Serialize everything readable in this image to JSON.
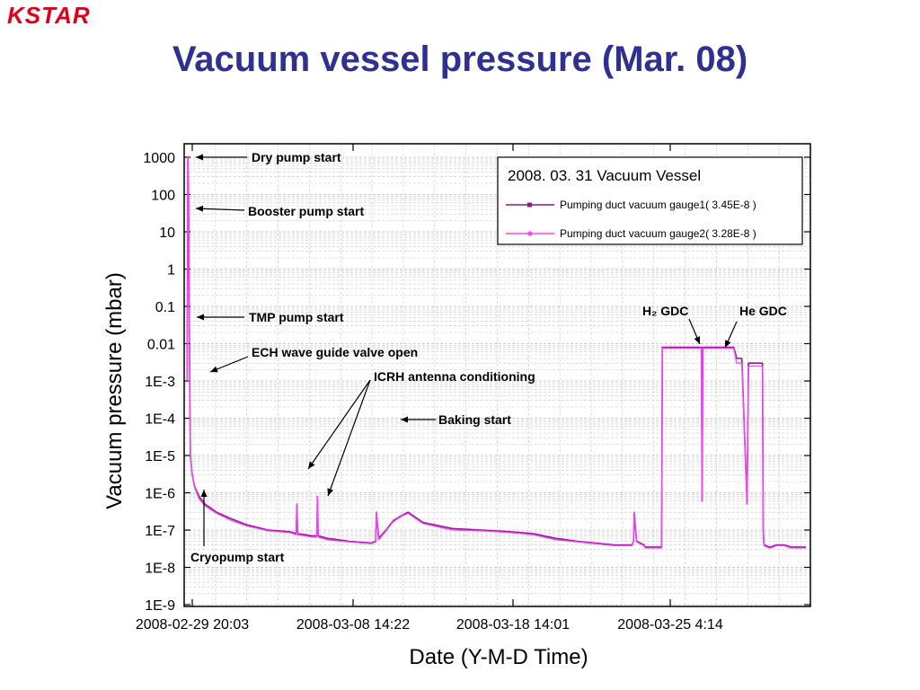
{
  "logo": {
    "text": "KSTAR"
  },
  "slide": {
    "title": "Vacuum vessel pressure (Mar. 08)"
  },
  "chart_data": {
    "type": "line",
    "title": "",
    "ylabel": "Vacuum pressure (mbar)",
    "xlabel": "Date (Y-M-D Time)",
    "yscale": "log",
    "ylim": [
      1e-09,
      1000
    ],
    "grid": true,
    "y_ticks": [
      "1000",
      "100",
      "10",
      "1",
      "0.1",
      "0.01",
      "1E-3",
      "1E-4",
      "1E-5",
      "1E-6",
      "1E-7",
      "1E-8",
      "1E-9"
    ],
    "x_ticks": [
      "2008-02-29 20:03",
      "2008-03-08 14:22",
      "2008-03-18 14:01",
      "2008-03-25 4:14"
    ],
    "legend": {
      "placement": "top-right",
      "title": "2008. 03. 31 Vacuum Vessel",
      "entries": [
        "Pumping duct vacuum gauge1( 3.45E-8 )",
        "Pumping duct vacuum gauge2( 3.28E-8 )"
      ]
    },
    "colors": {
      "gauge1": "#8b1a8b",
      "gauge2": "#ff40ff"
    },
    "series": [
      {
        "name": "Pumping duct vacuum gauge1( 3.45E-8 )",
        "x": [
          0,
          0.05,
          0.1,
          0.15,
          0.18,
          0.22,
          0.35,
          0.5,
          0.8,
          1.2,
          2.0,
          3.0,
          4.0,
          5.5,
          7.0,
          7.4,
          7.45,
          7.5,
          8.5,
          8.8,
          8.85,
          8.9,
          9.5,
          11.0,
          12.5,
          12.8,
          12.85,
          13.0,
          13.5,
          14.0,
          14.6,
          15.0,
          16.0,
          18.0,
          20.0,
          22.0,
          23.5,
          25.0,
          26.5,
          29.0,
          30.2,
          30.3,
          30.35,
          30.5,
          31.0,
          31.1,
          31.15,
          32.2,
          32.25,
          32.8,
          34.9,
          34.95,
          35.0,
          35.1,
          35.15,
          35.5,
          35.55,
          36.0,
          36.1,
          36.2,
          36.25,
          36.5,
          36.55,
          37.0,
          37.1,
          37.3,
          37.35,
          37.6,
          37.65,
          38.0,
          38.1,
          38.3,
          38.35,
          38.6,
          39.0,
          39.05,
          39.1,
          39.15,
          39.5,
          39.6,
          40.0,
          40.5,
          41.0,
          42.0
        ],
        "y": [
          0.001,
          1000,
          100,
          0.05,
          0.001,
          1e-05,
          3e-06,
          1.5e-06,
          8e-07,
          5e-07,
          3e-07,
          2e-07,
          1.4e-07,
          1e-07,
          9e-08,
          8e-08,
          5e-07,
          8e-08,
          7e-08,
          7e-08,
          8e-07,
          7e-08,
          6e-08,
          5e-08,
          4.5e-08,
          5e-08,
          3e-07,
          6e-08,
          1e-07,
          1.8e-07,
          2.5e-07,
          3e-07,
          1.6e-07,
          1.1e-07,
          1e-07,
          9e-08,
          8e-08,
          6e-08,
          5e-08,
          4e-08,
          4e-08,
          5e-08,
          3e-07,
          5e-08,
          4e-08,
          3.5e-08,
          3.5e-08,
          3.5e-08,
          0.008,
          0.008,
          0.008,
          6e-07,
          0.008,
          0.008,
          0.008,
          0.008,
          0.008,
          0.008,
          0.008,
          0.008,
          0.008,
          0.008,
          0.008,
          0.008,
          0.008,
          0.004,
          0.004,
          0.004,
          0.004,
          5e-07,
          0.003,
          0.003,
          0.003,
          0.003,
          0.003,
          0.003,
          1e-07,
          4e-08,
          3.5e-08,
          3.5e-08,
          4e-08,
          4e-08,
          3.5e-08,
          3.5e-08
        ]
      },
      {
        "name": "Pumping duct vacuum gauge2( 3.28E-8 )",
        "x": [
          0,
          0.05,
          0.1,
          0.15,
          0.18,
          0.22,
          0.35,
          0.5,
          0.8,
          1.2,
          2.0,
          3.0,
          4.0,
          5.5,
          7.0,
          7.4,
          7.45,
          7.5,
          8.5,
          8.8,
          8.85,
          8.9,
          9.5,
          11.0,
          12.5,
          12.8,
          12.85,
          13.0,
          13.5,
          14.0,
          14.6,
          15.0,
          16.0,
          18.0,
          20.0,
          22.0,
          23.5,
          25.0,
          26.5,
          29.0,
          30.2,
          30.3,
          30.35,
          30.5,
          31.0,
          31.1,
          31.15,
          32.2,
          32.25,
          32.8,
          34.9,
          34.95,
          35.0,
          35.1,
          35.15,
          35.5,
          35.55,
          36.0,
          36.1,
          36.2,
          36.25,
          36.5,
          36.55,
          37.0,
          37.1,
          37.3,
          37.35,
          37.6,
          37.65,
          38.0,
          38.1,
          38.3,
          38.35,
          38.6,
          39.0,
          39.05,
          39.1,
          39.15,
          39.5,
          39.6,
          40.0,
          40.5,
          41.0,
          42.0
        ],
        "y": [
          0.001,
          1000,
          100,
          0.05,
          0.001,
          1e-05,
          3e-06,
          1.4e-06,
          7e-07,
          4.5e-07,
          2.8e-07,
          1.8e-07,
          1.3e-07,
          9.5e-08,
          8.5e-08,
          7.5e-08,
          5e-07,
          7.5e-08,
          6.5e-08,
          6.5e-08,
          8e-07,
          6.5e-08,
          5.5e-08,
          4.8e-08,
          4.3e-08,
          4.8e-08,
          3e-07,
          5.5e-08,
          9.5e-08,
          1.7e-07,
          2.4e-07,
          2.8e-07,
          1.5e-07,
          1e-07,
          9.5e-08,
          8.5e-08,
          7.5e-08,
          5.5e-08,
          4.8e-08,
          3.8e-08,
          3.8e-08,
          4.8e-08,
          3e-07,
          4.8e-08,
          3.8e-08,
          3.3e-08,
          3.3e-08,
          3.3e-08,
          0.0075,
          0.0075,
          0.0075,
          6e-07,
          0.0075,
          0.0075,
          0.0075,
          0.0075,
          0.0075,
          0.0075,
          0.0075,
          0.0075,
          0.0075,
          0.0075,
          0.0075,
          0.0075,
          0.0075,
          0.003,
          0.003,
          0.003,
          0.003,
          5e-07,
          0.0025,
          0.0025,
          0.0025,
          0.0025,
          0.0025,
          0.0025,
          1e-07,
          3.8e-08,
          3.3e-08,
          3.3e-08,
          3.8e-08,
          3.8e-08,
          3.3e-08,
          3.3e-08
        ]
      }
    ],
    "annotations": [
      {
        "text": "Dry pump start",
        "pointer_y": 1000
      },
      {
        "text": "Booster pump start",
        "pointer_y": 50
      },
      {
        "text": "TMP pump start",
        "pointer_y": 0.05
      },
      {
        "text": "ECH wave guide valve open",
        "pointer_y": 0.002
      },
      {
        "text": "ICRH antenna conditioning",
        "pointer_y": 5e-06
      },
      {
        "text": "Baking start",
        "pointer_y": 0.0001
      },
      {
        "text": "Cryopump start",
        "pointer_y": 1e-06
      },
      {
        "text": "H₂ GDC",
        "pointer_y": 0.008
      },
      {
        "text": "He GDC",
        "pointer_y": 0.008
      }
    ]
  }
}
